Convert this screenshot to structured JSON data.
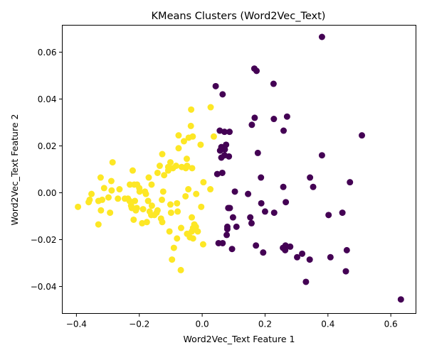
{
  "chart_data": {
    "type": "scatter",
    "title": "KMeans Clusters (Word2Vec_Text)",
    "xlabel": "Word2Vec_Text Feature 1",
    "ylabel": "Word2Vec_Text Feature 2",
    "xlim": [
      -0.445,
      0.68
    ],
    "ylim": [
      -0.0515,
      0.0715
    ],
    "xticks": [
      {
        "value": -0.4,
        "label": "−0.4"
      },
      {
        "value": -0.2,
        "label": "−0.2"
      },
      {
        "value": 0.0,
        "label": "0.0"
      },
      {
        "value": 0.2,
        "label": "0.2"
      },
      {
        "value": 0.4,
        "label": "0.4"
      },
      {
        "value": 0.6,
        "label": "0.6"
      }
    ],
    "yticks": [
      {
        "value": -0.04,
        "label": "−0.04"
      },
      {
        "value": -0.02,
        "label": "−0.02"
      },
      {
        "value": 0.0,
        "label": "0.00"
      },
      {
        "value": 0.02,
        "label": "0.02"
      },
      {
        "value": 0.04,
        "label": "0.04"
      },
      {
        "value": 0.06,
        "label": "0.06"
      }
    ],
    "grid": false,
    "legend": "none",
    "series": [
      {
        "color": "#440154",
        "x": [
          0.381,
          0.166,
          0.173,
          0.043,
          0.227,
          0.065,
          0.071,
          0.167,
          0.27,
          0.228,
          0.158,
          0.056,
          0.087,
          0.508,
          0.259,
          0.177,
          0.381,
          0.057,
          0.072,
          0.071,
          0.061,
          0.061,
          0.076,
          0.048,
          0.085,
          0.064,
          0.47,
          0.343,
          0.187,
          0.353,
          0.258,
          0.104,
          0.146,
          0.266,
          0.188,
          0.083,
          0.088,
          0.229,
          0.098,
          0.2,
          0.446,
          0.402,
          0.109,
          0.157,
          0.08,
          0.078,
          0.153,
          0.08,
          0.052,
          0.065,
          0.171,
          0.095,
          0.265,
          0.257,
          0.264,
          0.28,
          0.46,
          0.194,
          0.318,
          0.302,
          0.408,
          0.342,
          0.457,
          0.33,
          0.632
        ],
        "y": [
          0.0665,
          0.053,
          0.052,
          0.0455,
          0.0465,
          0.042,
          0.026,
          0.032,
          0.0325,
          0.0315,
          0.029,
          0.0265,
          0.026,
          0.0245,
          0.0265,
          0.017,
          0.016,
          0.018,
          0.0185,
          0.016,
          0.0195,
          0.015,
          0.0205,
          0.008,
          0.0155,
          0.0085,
          0.0045,
          0.0065,
          0.0065,
          0.0025,
          0.0025,
          0.0005,
          -0.0005,
          -0.004,
          -0.0045,
          -0.0065,
          -0.0065,
          -0.0085,
          -0.0105,
          -0.008,
          -0.0085,
          -0.0095,
          -0.0145,
          -0.013,
          -0.0145,
          -0.018,
          -0.0105,
          -0.0155,
          -0.0215,
          -0.0215,
          -0.0225,
          -0.024,
          -0.0225,
          -0.0235,
          -0.0245,
          -0.023,
          -0.0245,
          -0.0255,
          -0.026,
          -0.0275,
          -0.0275,
          -0.0285,
          -0.0335,
          -0.038,
          -0.0455
        ]
      },
      {
        "color": "#fde725",
        "x": [
          -0.035,
          0.027,
          -0.036,
          -0.03,
          -0.075,
          -0.043,
          -0.058,
          -0.075,
          0.037,
          -0.005,
          -0.285,
          -0.221,
          -0.127,
          -0.101,
          -0.108,
          -0.135,
          -0.049,
          -0.048,
          -0.032,
          -0.083,
          -0.065,
          -0.052,
          -0.093,
          -0.108,
          -0.121,
          -0.142,
          -0.17,
          -0.161,
          -0.216,
          -0.23,
          -0.207,
          -0.2,
          -0.323,
          -0.263,
          -0.289,
          -0.312,
          -0.352,
          -0.298,
          -0.246,
          -0.179,
          -0.199,
          -0.182,
          -0.236,
          -0.268,
          -0.288,
          -0.318,
          -0.33,
          -0.358,
          -0.395,
          -0.214,
          -0.172,
          -0.16,
          -0.145,
          -0.128,
          -0.124,
          -0.101,
          -0.08,
          -0.053,
          -0.044,
          0.004,
          0.026,
          -0.019,
          -0.003,
          -0.226,
          -0.208,
          -0.224,
          -0.211,
          -0.188,
          -0.142,
          -0.152,
          -0.162,
          -0.131,
          -0.099,
          -0.078,
          -0.033,
          -0.025,
          -0.191,
          -0.218,
          -0.231,
          -0.176,
          -0.167,
          -0.127,
          -0.322,
          -0.293,
          -0.361,
          -0.33,
          -0.02,
          -0.033,
          -0.029,
          -0.067,
          -0.048,
          -0.029,
          -0.039,
          -0.104,
          -0.08,
          -0.014,
          0.003,
          -0.09,
          -0.096,
          -0.068
        ],
        "y": [
          0.0355,
          0.0365,
          0.0285,
          0.024,
          0.0245,
          0.0235,
          0.022,
          0.019,
          0.024,
          0.0205,
          0.013,
          0.0095,
          0.0165,
          0.013,
          0.011,
          0.0115,
          0.0145,
          0.0115,
          0.0105,
          0.0115,
          0.011,
          0.0105,
          0.0105,
          0.0095,
          0.0075,
          0.0085,
          0.0065,
          0.0035,
          0.0035,
          0.0035,
          0.0035,
          0.002,
          0.0065,
          0.0015,
          0.005,
          0.002,
          -0.0005,
          -0.002,
          -0.0025,
          -0.0005,
          0.0005,
          0.0005,
          -0.0025,
          -0.0025,
          0.001,
          -0.003,
          -0.0035,
          -0.003,
          -0.006,
          -0.0035,
          -0.0035,
          -0.0055,
          -0.0085,
          -0.003,
          0.0005,
          -0.005,
          -0.0045,
          -0.0015,
          0.0015,
          0.0045,
          0.0015,
          -0.0005,
          -0.006,
          -0.0055,
          -0.0065,
          -0.0065,
          -0.0075,
          -0.007,
          -0.0075,
          -0.0095,
          -0.0095,
          -0.011,
          -0.0085,
          -0.008,
          -0.0105,
          -0.0135,
          -0.013,
          -0.0115,
          -0.0035,
          -0.0125,
          -0.008,
          -0.0125,
          -0.0075,
          -0.0085,
          -0.004,
          -0.0135,
          -0.0145,
          -0.0165,
          -0.0195,
          -0.015,
          -0.0175,
          -0.015,
          -0.019,
          -0.0165,
          -0.0195,
          -0.0165,
          -0.022,
          -0.0235,
          -0.0285,
          -0.033
        ]
      }
    ]
  }
}
